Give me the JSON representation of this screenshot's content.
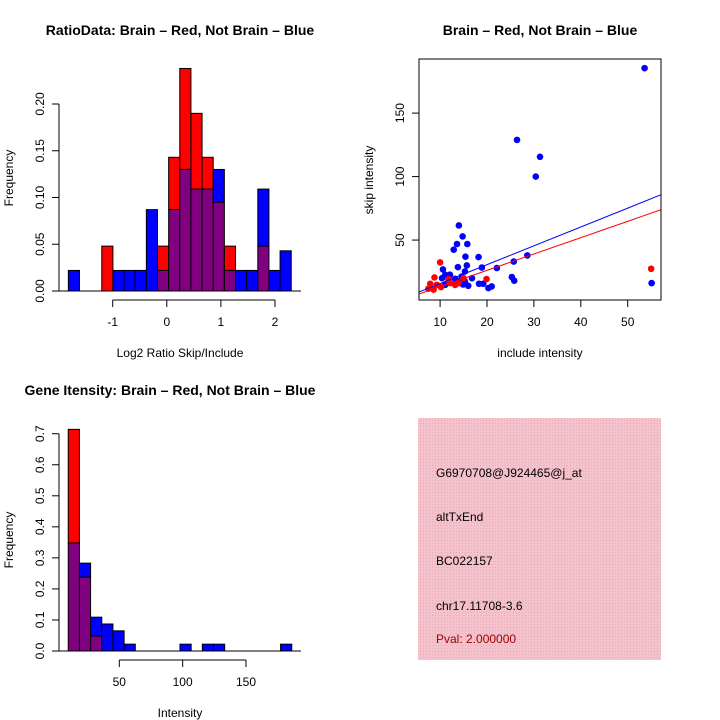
{
  "chart_data": [
    {
      "type": "bar",
      "title": "RatioData: Brain – Red, Not Brain – Blue",
      "xlabel": "Log2 Ratio Skip/Include",
      "ylabel": "Frequency",
      "xticks": [
        -1,
        0,
        1,
        2
      ],
      "yticks": [
        "0.00",
        "0.05",
        "0.10",
        "0.15",
        "0.20"
      ],
      "ytick_values": [
        0,
        0.05,
        0.1,
        0.15,
        0.2
      ],
      "bin_start": -1.82,
      "bin_width": 0.206,
      "series": [
        {
          "name": "Brain",
          "color": "#ff0000",
          "values": [
            0,
            0,
            0,
            0.048,
            0,
            0,
            0,
            0,
            0.048,
            0.143,
            0.238,
            0.19,
            0.143,
            0.095,
            0.048,
            0,
            0,
            0.048,
            0,
            0
          ]
        },
        {
          "name": "Not Brain",
          "color": "#0000ff",
          "values": [
            0.022,
            0,
            0,
            0,
            0.022,
            0.022,
            0.022,
            0.087,
            0.022,
            0.087,
            0.13,
            0.109,
            0.109,
            0.13,
            0.022,
            0.022,
            0.022,
            0.109,
            0.022,
            0.043
          ]
        }
      ],
      "overlap_color": "#800080"
    },
    {
      "type": "scatter",
      "title": "Brain – Red, Not Brain – Blue",
      "xlabel": "include intensity",
      "ylabel": "skip intensity",
      "xlim": [
        5.5,
        57.1
      ],
      "ylim": [
        2.8,
        192.6
      ],
      "xticks": [
        10,
        20,
        30,
        40,
        50
      ],
      "yticks": [
        50,
        100,
        150
      ],
      "series": [
        {
          "name": "Not Brain",
          "color": "#0000ff",
          "points": [
            [
              53.6,
              185.4
            ],
            [
              26.4,
              128.9
            ],
            [
              31.3,
              115.6
            ],
            [
              30.4,
              100
            ],
            [
              55.1,
              16.1
            ],
            [
              14,
              61.5
            ],
            [
              14.8,
              52.9
            ],
            [
              13.6,
              46.9
            ],
            [
              15.8,
              46.9
            ],
            [
              12.9,
              42.4
            ],
            [
              15.4,
              36.9
            ],
            [
              18.2,
              36.6
            ],
            [
              10.6,
              26.9
            ],
            [
              13.8,
              28.7
            ],
            [
              15.7,
              30
            ],
            [
              18.9,
              28.4
            ],
            [
              22.1,
              28
            ],
            [
              25.7,
              33.1
            ],
            [
              28.6,
              37.9
            ],
            [
              25.3,
              20.9
            ],
            [
              25.8,
              18
            ],
            [
              18.3,
              15.6
            ],
            [
              19.2,
              15.6
            ],
            [
              20.3,
              12.2
            ],
            [
              21,
              13.5
            ],
            [
              16,
              14
            ],
            [
              11.1,
              22.7
            ],
            [
              10.4,
              20
            ],
            [
              12.1,
              22.7
            ],
            [
              13.2,
              19.5
            ],
            [
              14.6,
              21.3
            ],
            [
              15.3,
              17.4
            ],
            [
              16.8,
              20
            ],
            [
              11.1,
              14.8
            ],
            [
              13.9,
              17.4
            ],
            [
              11.8,
              18.7
            ],
            [
              15.3,
              25.3
            ],
            [
              14.9,
              15
            ]
          ],
          "fit": [
            [
              5.5,
              9.1
            ],
            [
              57.1,
              85.7
            ]
          ]
        },
        {
          "name": "Brain",
          "color": "#ff0000",
          "points": [
            [
              55,
              27.4
            ],
            [
              10,
              32.4
            ],
            [
              8.8,
              20.6
            ],
            [
              7.9,
              15.6
            ],
            [
              7.5,
              11.7
            ],
            [
              8.6,
              10.9
            ],
            [
              10.2,
              13
            ],
            [
              19.9,
              19.3
            ],
            [
              11.8,
              19.3
            ],
            [
              13.9,
              16.1
            ],
            [
              13.2,
              14.7
            ],
            [
              15,
              20
            ],
            [
              12.1,
              16.1
            ],
            [
              9.3,
              14.8
            ]
          ],
          "fit": [
            [
              5.5,
              7.5
            ],
            [
              57.1,
              73.9
            ]
          ]
        }
      ]
    },
    {
      "type": "bar",
      "title": "Gene Itensity: Brain – Red, Not Brain – Blue",
      "xlabel": "Intensity",
      "ylabel": "Frequency",
      "xticks": [
        50,
        100,
        150
      ],
      "yticks": [
        "0.0",
        "0.1",
        "0.2",
        "0.3",
        "0.4",
        "0.5",
        "0.6",
        "0.7"
      ],
      "ytick_values": [
        0,
        0.1,
        0.2,
        0.3,
        0.4,
        0.5,
        0.6,
        0.7
      ],
      "bin_start": 9.7,
      "bin_width": 8.82,
      "series": [
        {
          "name": "Brain",
          "color": "#ff0000",
          "values": [
            0.714,
            0.238,
            0.048,
            0,
            0,
            0,
            0,
            0,
            0,
            0,
            0,
            0,
            0,
            0,
            0,
            0,
            0,
            0,
            0,
            0
          ]
        },
        {
          "name": "Not Brain",
          "color": "#0000ff",
          "values": [
            0.348,
            0.283,
            0.109,
            0.087,
            0.065,
            0.022,
            0,
            0,
            0,
            0,
            0.022,
            0,
            0.022,
            0.022,
            0,
            0,
            0,
            0,
            0,
            0.022
          ]
        }
      ],
      "overlap_color": "#800080"
    }
  ],
  "info_panel": {
    "probe_id": "G6970708@J924465@j_at",
    "event_type": "altTxEnd",
    "accession": "BC022157",
    "location": "chr17.11708-3.6",
    "pval": "Pval: 2.000000",
    "background_color": "#f4c2cc",
    "pval_color": "#a00000"
  }
}
